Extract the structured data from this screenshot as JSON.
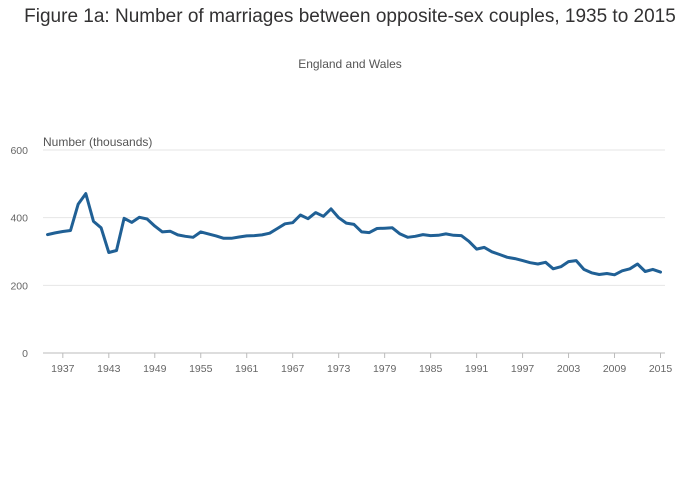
{
  "chart_data": {
    "type": "line",
    "title": "Figure 1a: Number of marriages between opposite-sex couples, 1935 to 2015",
    "subtitle": "England and Wales",
    "ylabel": "Number (thousands)",
    "xlabel": "",
    "ylim": [
      0,
      600
    ],
    "yticks": [
      0,
      200,
      400,
      600
    ],
    "xlim": [
      1935,
      2015
    ],
    "xticks": [
      1937,
      1943,
      1949,
      1955,
      1961,
      1967,
      1973,
      1979,
      1985,
      1991,
      1997,
      2003,
      2009,
      2015
    ],
    "grid": true,
    "line_color": "#206095",
    "series": [
      {
        "x": [
          1935,
          1936,
          1937,
          1938,
          1939,
          1940,
          1941,
          1942,
          1943,
          1944,
          1945,
          1946,
          1947,
          1948,
          1949,
          1950,
          1951,
          1952,
          1953,
          1954,
          1955,
          1956,
          1957,
          1958,
          1959,
          1960,
          1961,
          1962,
          1963,
          1964,
          1965,
          1966,
          1967,
          1968,
          1969,
          1970,
          1971,
          1972,
          1973,
          1974,
          1975,
          1976,
          1977,
          1978,
          1979,
          1980,
          1981,
          1982,
          1983,
          1984,
          1985,
          1986,
          1987,
          1988,
          1989,
          1990,
          1991,
          1992,
          1993,
          1994,
          1995,
          1996,
          1997,
          1998,
          1999,
          2000,
          2001,
          2002,
          2003,
          2004,
          2005,
          2006,
          2007,
          2008,
          2009,
          2010,
          2011,
          2012,
          2013,
          2014,
          2015
        ],
        "values": [
          350,
          355,
          359,
          362,
          440,
          471,
          389,
          370,
          297,
          303,
          398,
          386,
          401,
          396,
          375,
          358,
          360,
          349,
          345,
          342,
          358,
          352,
          346,
          339,
          339,
          343,
          346,
          347,
          349,
          354,
          368,
          382,
          385,
          408,
          397,
          415,
          404,
          426,
          400,
          384,
          380,
          358,
          356,
          368,
          369,
          370,
          352,
          342,
          345,
          350,
          347,
          348,
          352,
          348,
          347,
          330,
          307,
          312,
          299,
          291,
          283,
          279,
          273,
          267,
          263,
          268,
          249,
          255,
          270,
          273,
          247,
          237,
          232,
          235,
          231,
          243,
          249,
          263,
          241,
          247,
          239
        ]
      }
    ]
  }
}
